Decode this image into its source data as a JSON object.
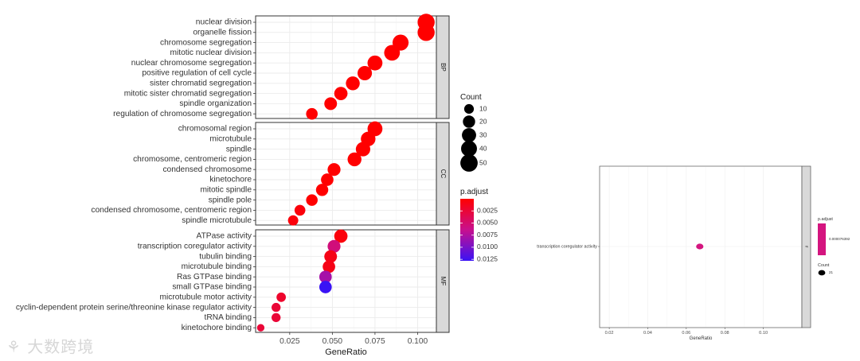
{
  "chart_data": [
    {
      "type": "scatter",
      "subtype": "faceted dot plot",
      "xlabel": "GeneRatio",
      "ylabel": "",
      "xlim": [
        0.005,
        0.111
      ],
      "xticks": [
        0.025,
        0.05,
        0.075,
        0.1
      ],
      "xtick_labels": [
        "0.025",
        "0.050",
        "0.075",
        "0.100"
      ],
      "grid": true,
      "legend_position": "right",
      "facets": [
        {
          "name": "BP",
          "points": [
            {
              "term": "nuclear division",
              "gene_ratio": 0.105,
              "count": 48,
              "p_adjust": 0.0
            },
            {
              "term": "organelle fission",
              "gene_ratio": 0.105,
              "count": 48,
              "p_adjust": 0.0
            },
            {
              "term": "chromosome segregation",
              "gene_ratio": 0.09,
              "count": 41,
              "p_adjust": 0.0
            },
            {
              "term": "mitotic nuclear division",
              "gene_ratio": 0.085,
              "count": 39,
              "p_adjust": 0.0
            },
            {
              "term": "nuclear chromosome segregation",
              "gene_ratio": 0.075,
              "count": 34,
              "p_adjust": 0.0
            },
            {
              "term": "positive regulation of cell cycle",
              "gene_ratio": 0.069,
              "count": 31,
              "p_adjust": 0.0
            },
            {
              "term": "sister chromatid segregation",
              "gene_ratio": 0.062,
              "count": 28,
              "p_adjust": 0.0
            },
            {
              "term": "mitotic sister chromatid segregation",
              "gene_ratio": 0.055,
              "count": 25,
              "p_adjust": 0.0
            },
            {
              "term": "spindle organization",
              "gene_ratio": 0.049,
              "count": 22,
              "p_adjust": 0.0
            },
            {
              "term": "regulation of chromosome segregation",
              "gene_ratio": 0.038,
              "count": 17,
              "p_adjust": 0.0
            }
          ]
        },
        {
          "name": "CC",
          "points": [
            {
              "term": "chromosomal region",
              "gene_ratio": 0.075,
              "count": 34,
              "p_adjust": 0.0
            },
            {
              "term": "microtubule",
              "gene_ratio": 0.071,
              "count": 32,
              "p_adjust": 0.0
            },
            {
              "term": "spindle",
              "gene_ratio": 0.068,
              "count": 31,
              "p_adjust": 0.0
            },
            {
              "term": "chromosome, centromeric region",
              "gene_ratio": 0.063,
              "count": 28,
              "p_adjust": 0.0
            },
            {
              "term": "condensed chromosome",
              "gene_ratio": 0.051,
              "count": 23,
              "p_adjust": 0.0
            },
            {
              "term": "kinetochore",
              "gene_ratio": 0.047,
              "count": 21,
              "p_adjust": 0.0
            },
            {
              "term": "mitotic spindle",
              "gene_ratio": 0.044,
              "count": 20,
              "p_adjust": 0.0
            },
            {
              "term": "spindle pole",
              "gene_ratio": 0.038,
              "count": 17,
              "p_adjust": 0.0
            },
            {
              "term": "condensed chromosome, centromeric region",
              "gene_ratio": 0.031,
              "count": 14,
              "p_adjust": 0.0005
            },
            {
              "term": "spindle microtubule",
              "gene_ratio": 0.027,
              "count": 12,
              "p_adjust": 0.0005
            }
          ]
        },
        {
          "name": "MF",
          "points": [
            {
              "term": "ATPase activity",
              "gene_ratio": 0.055,
              "count": 25,
              "p_adjust": 0.0005
            },
            {
              "term": "transcription coregulator activity",
              "gene_ratio": 0.051,
              "count": 23,
              "p_adjust": 0.0055
            },
            {
              "term": "tubulin binding",
              "gene_ratio": 0.049,
              "count": 22,
              "p_adjust": 0.001
            },
            {
              "term": "microtubule binding",
              "gene_ratio": 0.048,
              "count": 21,
              "p_adjust": 0.001
            },
            {
              "term": "Ras GTPase binding",
              "gene_ratio": 0.046,
              "count": 21,
              "p_adjust": 0.008
            },
            {
              "term": "small GTPase binding",
              "gene_ratio": 0.046,
              "count": 21,
              "p_adjust": 0.0128
            },
            {
              "term": "microtubule motor activity",
              "gene_ratio": 0.02,
              "count": 9,
              "p_adjust": 0.002
            },
            {
              "term": "cyclin-dependent protein serine/threonine kinase regulator activity",
              "gene_ratio": 0.017,
              "count": 8,
              "p_adjust": 0.0025
            },
            {
              "term": "tRNA binding",
              "gene_ratio": 0.017,
              "count": 8,
              "p_adjust": 0.0025
            },
            {
              "term": "kinetochore binding",
              "gene_ratio": 0.008,
              "count": 4,
              "p_adjust": 0.0025
            }
          ]
        }
      ],
      "size_legend": {
        "title": "Count",
        "values": [
          10,
          20,
          30,
          40,
          50
        ]
      },
      "color_legend": {
        "title": "p.adjust",
        "range": [
          0.0,
          0.0128
        ],
        "ticks": [
          0.0025,
          0.005,
          0.0075,
          0.01,
          0.0125
        ],
        "tick_labels": [
          "0.0025",
          "0.0050",
          "0.0075",
          "0.0100",
          "0.0125"
        ],
        "low_color": "#ff0000",
        "high_color": "#0000ff"
      }
    },
    {
      "type": "scatter",
      "subtype": "faceted dot plot",
      "xlabel": "GeneRatio",
      "ylabel": "",
      "xlim": [
        0.015,
        0.12
      ],
      "xticks": [
        0.02,
        0.04,
        0.06,
        0.08,
        0.1
      ],
      "xtick_labels": [
        "0.02",
        "0.04",
        "0.06",
        "0.08",
        "0.10"
      ],
      "grid": true,
      "legend_position": "right",
      "facets": [
        {
          "name": "tf",
          "points": [
            {
              "term": "transcription coregulator activity",
              "gene_ratio": 0.067,
              "count": 21,
              "p_adjust": 7.6392e-05
            }
          ]
        }
      ],
      "size_legend": {
        "title": "Count",
        "values": [
          21
        ]
      },
      "color_legend": {
        "title": "p.adjust",
        "tick_labels": [
          "0.000076392"
        ],
        "color": "#d4157f"
      }
    }
  ],
  "watermark": {
    "text": "大数跨境"
  },
  "colors": {
    "panel_bg": "#ffffff",
    "grid": "#ebebeb",
    "strip_bg": "#d9d9d9",
    "frame": "#333333"
  }
}
